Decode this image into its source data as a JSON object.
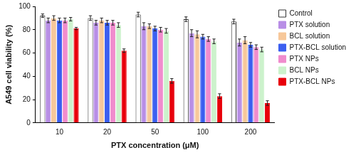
{
  "chart_data": {
    "type": "bar",
    "x_label": "PTX concentration (μM)",
    "y_label": "A549 cell viability (%)",
    "categories": [
      "10",
      "20",
      "50",
      "100",
      "200"
    ],
    "series": [
      {
        "name": "Control",
        "color": "#ffffff",
        "values": [
          92,
          90,
          93,
          89,
          87
        ],
        "errors": [
          1.5,
          2,
          2,
          2,
          2
        ]
      },
      {
        "name": "PTX solution",
        "color": "#b88ee6",
        "values": [
          88,
          86,
          83,
          77,
          69
        ],
        "errors": [
          2,
          2,
          3,
          3,
          3
        ]
      },
      {
        "name": "BCL solution",
        "color": "#f7c89a",
        "values": [
          90,
          88,
          83,
          76,
          71
        ],
        "errors": [
          2,
          2,
          2,
          3,
          3
        ]
      },
      {
        "name": "PTX-BCL solution",
        "color": "#3b5ff0",
        "values": [
          88,
          86,
          81,
          74,
          67
        ],
        "errors": [
          2,
          2,
          2,
          2,
          2
        ]
      },
      {
        "name": "PTX NPs",
        "color": "#f08ccd",
        "values": [
          88,
          86,
          80,
          72,
          65
        ],
        "errors": [
          2,
          2,
          2,
          2,
          2
        ]
      },
      {
        "name": "BCL NPs",
        "color": "#ccf2cc",
        "values": [
          89,
          84,
          79,
          70,
          63
        ],
        "errors": [
          1.5,
          2,
          2,
          2,
          2
        ]
      },
      {
        "name": "PTX-BCL NPs",
        "color": "#e8000b",
        "values": [
          81,
          62,
          36,
          23,
          17
        ],
        "errors": [
          1,
          1.5,
          2,
          2,
          2
        ]
      }
    ],
    "ylim": [
      0,
      100
    ],
    "yticks": [
      0,
      20,
      40,
      60,
      80,
      100
    ],
    "grid": false,
    "legend": "right"
  }
}
